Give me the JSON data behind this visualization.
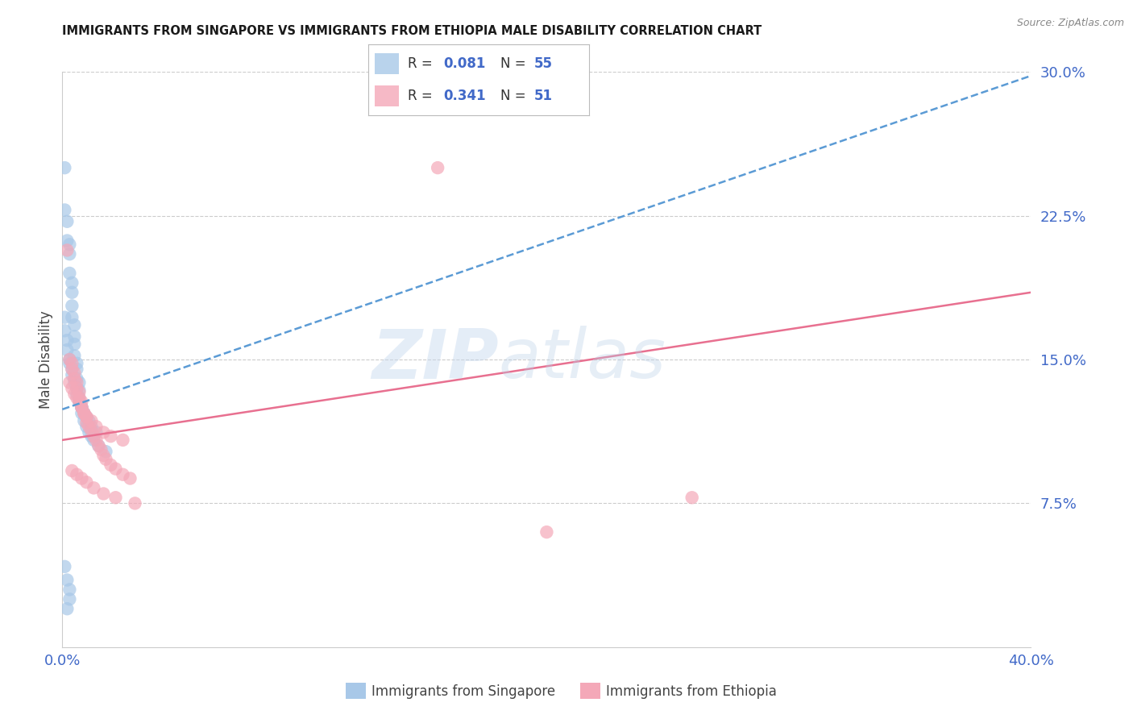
{
  "title": "IMMIGRANTS FROM SINGAPORE VS IMMIGRANTS FROM ETHIOPIA MALE DISABILITY CORRELATION CHART",
  "source": "Source: ZipAtlas.com",
  "ylabel": "Male Disability",
  "xlim": [
    0.0,
    0.4
  ],
  "ylim": [
    0.0,
    0.3
  ],
  "yticks": [
    0.075,
    0.15,
    0.225,
    0.3
  ],
  "ytick_labels": [
    "7.5%",
    "15.0%",
    "22.5%",
    "30.0%"
  ],
  "color_singapore": "#a8c8e8",
  "color_ethiopia": "#f4a8b8",
  "color_singapore_line": "#5b9bd5",
  "color_ethiopia_line": "#e87090",
  "color_blue_text": "#4169c8",
  "sg_R": 0.081,
  "sg_N": 55,
  "et_R": 0.341,
  "et_N": 51,
  "sg_line_x0": 0.0,
  "sg_line_y0": 0.124,
  "sg_line_x1": 0.4,
  "sg_line_y1": 0.298,
  "et_line_x0": 0.0,
  "et_line_y0": 0.108,
  "et_line_x1": 0.4,
  "et_line_y1": 0.185,
  "singapore_x": [
    0.001,
    0.001,
    0.002,
    0.002,
    0.003,
    0.003,
    0.003,
    0.004,
    0.004,
    0.004,
    0.004,
    0.005,
    0.005,
    0.005,
    0.005,
    0.006,
    0.006,
    0.006,
    0.007,
    0.007,
    0.007,
    0.008,
    0.008,
    0.009,
    0.01,
    0.011,
    0.012,
    0.013,
    0.015,
    0.018,
    0.001,
    0.001,
    0.002,
    0.002,
    0.003,
    0.003,
    0.004,
    0.004,
    0.005,
    0.005,
    0.006,
    0.006,
    0.007,
    0.007,
    0.008,
    0.009,
    0.01,
    0.011,
    0.012,
    0.014,
    0.001,
    0.002,
    0.003,
    0.003,
    0.002
  ],
  "singapore_y": [
    0.25,
    0.228,
    0.222,
    0.212,
    0.21,
    0.205,
    0.195,
    0.19,
    0.185,
    0.178,
    0.172,
    0.168,
    0.162,
    0.158,
    0.152,
    0.148,
    0.145,
    0.14,
    0.138,
    0.134,
    0.128,
    0.125,
    0.122,
    0.118,
    0.115,
    0.112,
    0.11,
    0.108,
    0.105,
    0.102,
    0.172,
    0.165,
    0.16,
    0.155,
    0.15,
    0.148,
    0.145,
    0.142,
    0.14,
    0.138,
    0.135,
    0.132,
    0.13,
    0.128,
    0.125,
    0.122,
    0.12,
    0.118,
    0.115,
    0.112,
    0.042,
    0.035,
    0.03,
    0.025,
    0.02
  ],
  "ethiopia_x": [
    0.002,
    0.003,
    0.004,
    0.004,
    0.005,
    0.005,
    0.006,
    0.006,
    0.007,
    0.007,
    0.008,
    0.008,
    0.009,
    0.01,
    0.01,
    0.011,
    0.012,
    0.013,
    0.014,
    0.015,
    0.016,
    0.017,
    0.018,
    0.02,
    0.022,
    0.025,
    0.028,
    0.003,
    0.004,
    0.005,
    0.006,
    0.007,
    0.008,
    0.009,
    0.01,
    0.012,
    0.014,
    0.017,
    0.02,
    0.025,
    0.004,
    0.006,
    0.008,
    0.01,
    0.013,
    0.017,
    0.022,
    0.03,
    0.26,
    0.2,
    0.155
  ],
  "ethiopia_y": [
    0.207,
    0.15,
    0.148,
    0.145,
    0.143,
    0.14,
    0.138,
    0.135,
    0.133,
    0.13,
    0.128,
    0.125,
    0.122,
    0.12,
    0.117,
    0.115,
    0.113,
    0.11,
    0.108,
    0.105,
    0.103,
    0.1,
    0.098,
    0.095,
    0.093,
    0.09,
    0.088,
    0.138,
    0.135,
    0.132,
    0.13,
    0.128,
    0.125,
    0.122,
    0.12,
    0.118,
    0.115,
    0.112,
    0.11,
    0.108,
    0.092,
    0.09,
    0.088,
    0.086,
    0.083,
    0.08,
    0.078,
    0.075,
    0.078,
    0.06,
    0.25
  ]
}
